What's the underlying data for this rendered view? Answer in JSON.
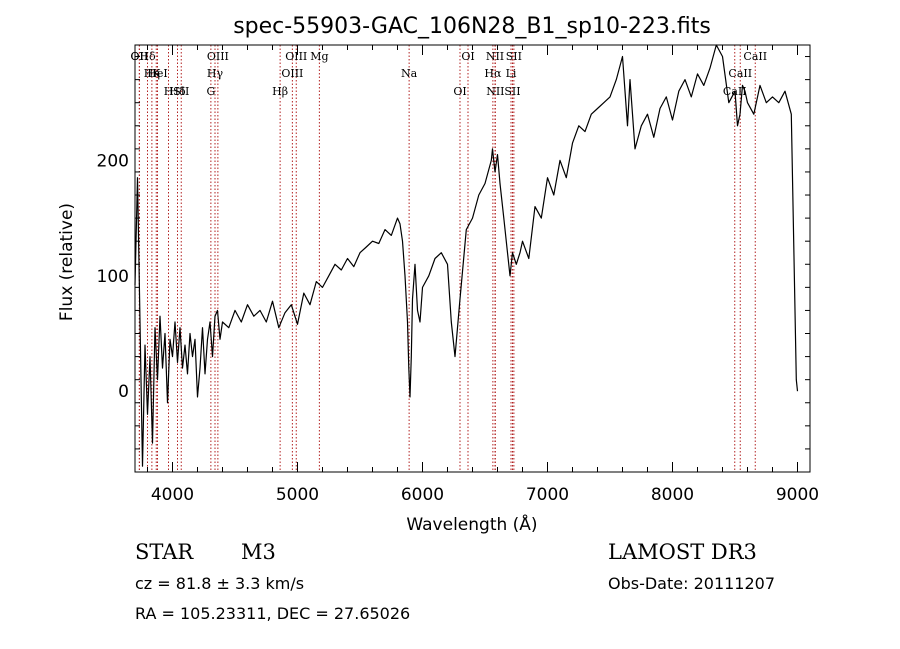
{
  "chart_data": {
    "type": "line",
    "title": "spec-55903-GAC_106N28_B1_sp10-223.fits",
    "xlabel": "Wavelength (Å)",
    "ylabel": "Flux (relative)",
    "xlim": [
      3700,
      9100
    ],
    "ylim": [
      -70,
      300
    ],
    "xticks": [
      4000,
      5000,
      6000,
      7000,
      8000,
      9000
    ],
    "yticks": [
      0,
      100,
      200
    ],
    "series": [
      {
        "name": "flux",
        "x": [
          3700,
          3720,
          3740,
          3760,
          3780,
          3800,
          3820,
          3840,
          3860,
          3880,
          3900,
          3920,
          3940,
          3960,
          3980,
          4000,
          4020,
          4040,
          4060,
          4080,
          4100,
          4120,
          4140,
          4160,
          4180,
          4200,
          4220,
          4240,
          4260,
          4280,
          4300,
          4320,
          4340,
          4360,
          4380,
          4400,
          4450,
          4500,
          4550,
          4600,
          4650,
          4700,
          4750,
          4800,
          4850,
          4900,
          4950,
          5000,
          5050,
          5100,
          5150,
          5200,
          5250,
          5300,
          5350,
          5400,
          5450,
          5500,
          5550,
          5600,
          5650,
          5700,
          5750,
          5800,
          5820,
          5840,
          5860,
          5880,
          5890,
          5900,
          5910,
          5920,
          5940,
          5960,
          5980,
          6000,
          6050,
          6100,
          6150,
          6200,
          6230,
          6260,
          6300,
          6350,
          6400,
          6450,
          6500,
          6550,
          6560,
          6580,
          6600,
          6620,
          6650,
          6680,
          6700,
          6720,
          6750,
          6780,
          6800,
          6850,
          6900,
          6950,
          7000,
          7050,
          7100,
          7150,
          7200,
          7250,
          7300,
          7350,
          7400,
          7450,
          7500,
          7550,
          7600,
          7620,
          7640,
          7660,
          7680,
          7700,
          7750,
          7800,
          7850,
          7900,
          7950,
          8000,
          8050,
          8100,
          8150,
          8200,
          8250,
          8300,
          8350,
          8400,
          8450,
          8500,
          8520,
          8540,
          8560,
          8580,
          8600,
          8650,
          8700,
          8750,
          8800,
          8850,
          8900,
          8950,
          8990,
          9000
        ],
        "y": [
          92,
          185,
          60,
          -65,
          40,
          -20,
          30,
          -45,
          55,
          10,
          65,
          20,
          50,
          -10,
          45,
          30,
          60,
          25,
          55,
          20,
          40,
          15,
          50,
          30,
          45,
          -5,
          20,
          55,
          15,
          45,
          60,
          30,
          65,
          70,
          45,
          60,
          55,
          70,
          60,
          75,
          65,
          70,
          60,
          78,
          55,
          68,
          75,
          58,
          85,
          75,
          95,
          90,
          100,
          110,
          105,
          115,
          108,
          120,
          125,
          130,
          128,
          140,
          135,
          150,
          145,
          130,
          100,
          60,
          20,
          -5,
          30,
          80,
          110,
          70,
          60,
          90,
          100,
          115,
          120,
          110,
          60,
          30,
          80,
          140,
          150,
          170,
          180,
          200,
          210,
          190,
          205,
          180,
          150,
          120,
          100,
          120,
          110,
          120,
          130,
          115,
          160,
          150,
          185,
          170,
          200,
          185,
          215,
          230,
          225,
          240,
          245,
          250,
          255,
          270,
          290,
          260,
          230,
          270,
          240,
          210,
          230,
          240,
          220,
          245,
          255,
          235,
          260,
          270,
          255,
          275,
          265,
          280,
          300,
          290,
          250,
          260,
          230,
          240,
          265,
          260,
          250,
          240,
          265,
          250,
          255,
          250,
          260,
          240,
          10,
          0
        ]
      }
    ],
    "spectral_lines": [
      {
        "label": "Hδ",
        "wavelength": 3800
      },
      {
        "label": "K",
        "wavelength": 3870
      },
      {
        "label": "Hδ",
        "wavelength": 4040
      },
      {
        "label": "OII",
        "wavelength": 3735
      },
      {
        "label": "HeI",
        "wavelength": 3880
      },
      {
        "label": "SII",
        "wavelength": 4070
      },
      {
        "label": "OII",
        "wavelength": 3735
      },
      {
        "label": "Hη",
        "wavelength": 3835
      },
      {
        "label": "H",
        "wavelength": 3968
      },
      {
        "label": "OIII",
        "wavelength": 4363
      },
      {
        "label": "Hγ",
        "wavelength": 4340
      },
      {
        "label": "G",
        "wavelength": 4307
      },
      {
        "label": "OIII",
        "wavelength": 4990
      },
      {
        "label": "OIII",
        "wavelength": 4959
      },
      {
        "label": "Hβ",
        "wavelength": 4861
      },
      {
        "label": "Mg",
        "wavelength": 5175
      },
      {
        "label": "Na",
        "wavelength": 5893
      },
      {
        "label": "OI",
        "wavelength": 6300
      },
      {
        "label": "OI",
        "wavelength": 6364
      },
      {
        "label": "Hα",
        "wavelength": 6563
      },
      {
        "label": "SII",
        "wavelength": 6720
      },
      {
        "label": "NII",
        "wavelength": 6580
      },
      {
        "label": "Li",
        "wavelength": 6708
      },
      {
        "label": "NII",
        "wavelength": 6583
      },
      {
        "label": "SII",
        "wavelength": 6731
      },
      {
        "label": "CaII",
        "wavelength": 8542
      },
      {
        "label": "CaII",
        "wavelength": 8498
      },
      {
        "label": "CaII",
        "wavelength": 8662
      }
    ]
  },
  "info": {
    "object_type": "STAR",
    "subclass": "M3",
    "survey": "LAMOST DR3",
    "cz": "cz = 81.8 ± 3.3 km/s",
    "obs_date": "Obs-Date: 20111207",
    "coords": "RA = 105.23311, DEC =  27.65026"
  }
}
